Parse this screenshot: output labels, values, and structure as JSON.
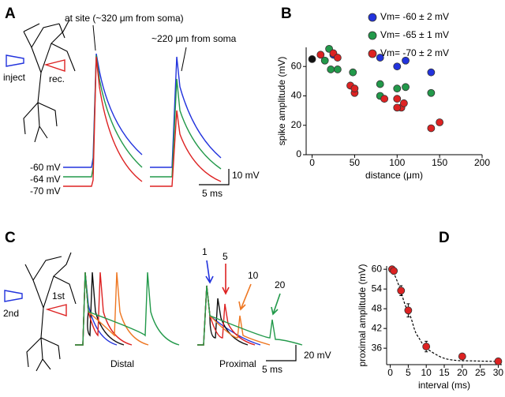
{
  "panels": {
    "a": {
      "label": "A",
      "site_label": "at site (~320 μm from soma)",
      "remote_label": "~220 μm from soma",
      "inject": "inject",
      "rec": "rec.",
      "baselines": [
        "-60 mV",
        "-64 mV",
        "-70 mV"
      ],
      "scale_v": "10 mV",
      "scale_t": "5 ms"
    },
    "c": {
      "label": "C",
      "second": "2nd",
      "first": "1st",
      "distal": "Distal",
      "proximal": "Proximal",
      "intervals": [
        "1",
        "5",
        "10",
        "20"
      ],
      "scale_v": "20 mV",
      "scale_t": "5 ms"
    }
  },
  "chart_data": [
    {
      "type": "scatter",
      "panel_label": "B",
      "x_label": "distance (μm)",
      "y_label": "spike amplitude (mV)",
      "xlim": [
        -7,
        200
      ],
      "ylim": [
        0,
        73
      ],
      "xticks": [
        0,
        50,
        100,
        150,
        200
      ],
      "yticks": [
        0,
        20,
        40,
        60
      ],
      "legend": "top-right",
      "series": [
        {
          "color": "#111111",
          "x": [
            0
          ],
          "values": [
            65
          ]
        },
        {
          "name": "Vm= -60 ± 2 mV",
          "color": "#2233dd",
          "x": [
            25,
            80,
            100,
            110,
            140
          ],
          "values": [
            68,
            66,
            60,
            64,
            56
          ]
        },
        {
          "name": "Vm= -65 ± 1 mV",
          "color": "#22994a",
          "x": [
            20,
            15,
            22,
            30,
            48,
            80,
            80,
            100,
            110,
            140
          ],
          "values": [
            72,
            64,
            58,
            58,
            56,
            48,
            40,
            45,
            46,
            42
          ]
        },
        {
          "name": "Vm= -70 ± 2 mV",
          "color": "#dd2222",
          "x": [
            10,
            25,
            30,
            45,
            50,
            50,
            85,
            100,
            105,
            100,
            108,
            140,
            150
          ],
          "values": [
            68,
            69,
            66,
            47,
            42,
            45,
            38,
            38,
            32,
            32,
            35,
            18,
            22
          ]
        }
      ]
    },
    {
      "type": "scatter",
      "panel_label": "D",
      "x_label": "interval (ms)",
      "y_label": "proximal amplitude (mV)",
      "xlim": [
        -1,
        31
      ],
      "ylim": [
        31,
        61
      ],
      "xticks": [
        0,
        5,
        10,
        15,
        20,
        25,
        30
      ],
      "yticks": [
        36,
        42,
        48,
        54,
        60
      ],
      "series": [
        {
          "color": "#dd2222",
          "x": [
            0.5,
            1,
            3,
            5,
            10,
            20,
            30
          ],
          "values": [
            60,
            59.5,
            53.5,
            47.5,
            36.5,
            33.5,
            32
          ],
          "errors": [
            0.8,
            0.6,
            1.5,
            2,
            1.6,
            0.8,
            0.9
          ]
        }
      ]
    }
  ]
}
